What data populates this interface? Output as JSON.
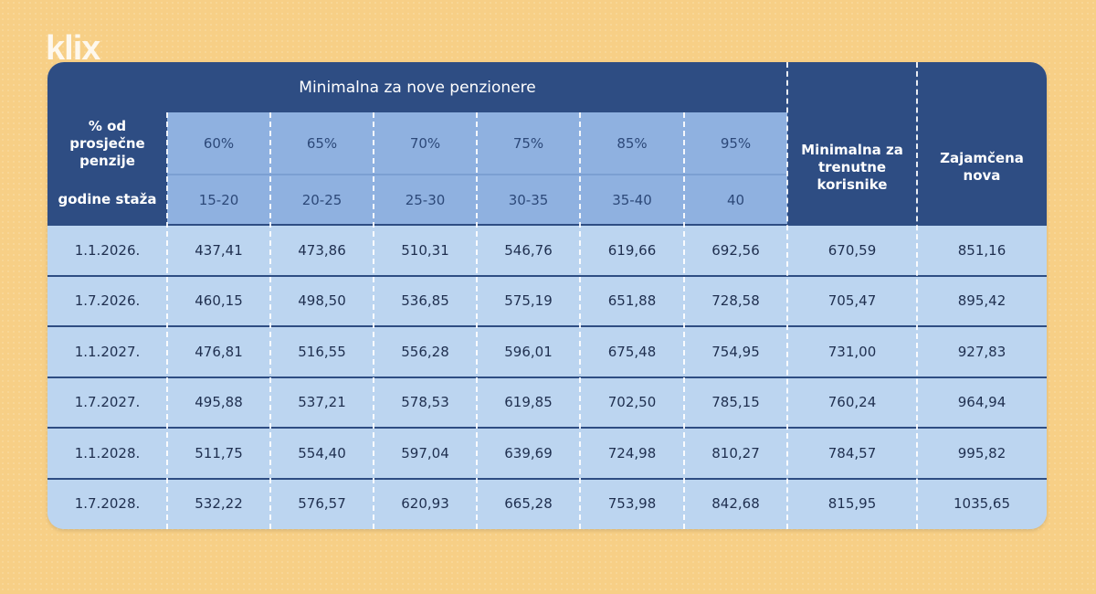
{
  "logo": "klix",
  "table": {
    "group_title": "Minimalna za nove penzionere",
    "row_labels": {
      "percent": "% od prosječne penzije",
      "years": "godine staža"
    },
    "percentages": [
      "60%",
      "65%",
      "70%",
      "75%",
      "85%",
      "95%"
    ],
    "years": [
      "15-20",
      "20-25",
      "25-30",
      "30-35",
      "35-40",
      "40"
    ],
    "extra_headers": [
      "Minimalna za trenutne korisnike",
      "Zajamčena nova"
    ],
    "rows": [
      {
        "date": "1.1.2026.",
        "values": [
          "437,41",
          "473,86",
          "510,31",
          "546,76",
          "619,66",
          "692,56",
          "670,59",
          "851,16"
        ]
      },
      {
        "date": "1.7.2026.",
        "values": [
          "460,15",
          "498,50",
          "536,85",
          "575,19",
          "651,88",
          "728,58",
          "705,47",
          "895,42"
        ]
      },
      {
        "date": "1.1.2027.",
        "values": [
          "476,81",
          "516,55",
          "556,28",
          "596,01",
          "675,48",
          "754,95",
          "731,00",
          "927,83"
        ]
      },
      {
        "date": "1.7.2027.",
        "values": [
          "495,88",
          "537,21",
          "578,53",
          "619,85",
          "702,50",
          "785,15",
          "760,24",
          "964,94"
        ]
      },
      {
        "date": "1.1.2028.",
        "values": [
          "511,75",
          "554,40",
          "597,04",
          "639,69",
          "724,98",
          "810,27",
          "784,57",
          "995,82"
        ]
      },
      {
        "date": "1.7.2028.",
        "values": [
          "532,22",
          "576,57",
          "620,93",
          "665,28",
          "753,98",
          "842,68",
          "815,95",
          "1035,65"
        ]
      }
    ]
  },
  "colors": {
    "background": "#f7cf86",
    "header_dark": "#2e4d83",
    "header_mid": "#8fb1e0",
    "body": "#bcd5f0"
  }
}
